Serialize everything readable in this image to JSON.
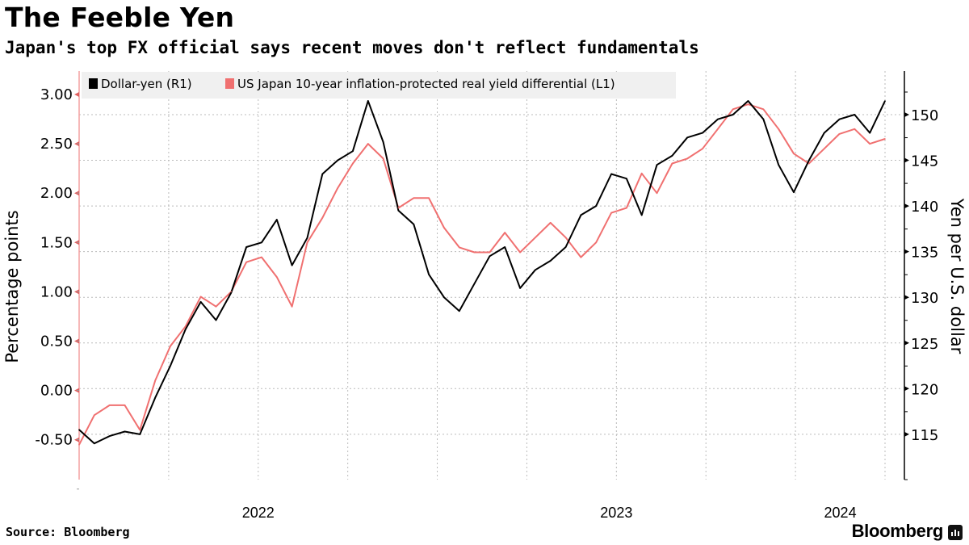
{
  "header": {
    "title": "The Feeble Yen",
    "subtitle": "Japan's top FX official says recent moves don't reflect fundamentals"
  },
  "footer": {
    "source": "Source: Bloomberg",
    "brand": "Bloomberg"
  },
  "colors": {
    "dollar_yen": "#000000",
    "real_yield_diff": "#f07070",
    "grid": "#bbbbbb",
    "left_axis": "#f4a0a0",
    "legend_bg": "#f0f0f0"
  },
  "chart_data": {
    "type": "line",
    "title": "The Feeble Yen",
    "subtitle": "Japan's top FX official says recent moves don't reflect fundamentals",
    "x_range": [
      "2022-01",
      "2024-03"
    ],
    "x_year_labels": [
      "2022",
      "2023",
      "2024"
    ],
    "x": [
      "2022-01a",
      "2022-01b",
      "2022-02a",
      "2022-02b",
      "2022-03a",
      "2022-03b",
      "2022-04a",
      "2022-04b",
      "2022-05a",
      "2022-05b",
      "2022-06a",
      "2022-06b",
      "2022-07a",
      "2022-07b",
      "2022-08a",
      "2022-08b",
      "2022-09a",
      "2022-09b",
      "2022-10a",
      "2022-10b",
      "2022-11a",
      "2022-11b",
      "2022-12a",
      "2022-12b",
      "2023-01a",
      "2023-01b",
      "2023-02a",
      "2023-02b",
      "2023-03a",
      "2023-03b",
      "2023-04a",
      "2023-04b",
      "2023-05a",
      "2023-05b",
      "2023-06a",
      "2023-06b",
      "2023-07a",
      "2023-07b",
      "2023-08a",
      "2023-08b",
      "2023-09a",
      "2023-09b",
      "2023-10a",
      "2023-10b",
      "2023-11a",
      "2023-11b",
      "2023-12a",
      "2023-12b",
      "2024-01a",
      "2024-01b",
      "2024-02a",
      "2024-02b",
      "2024-03a",
      "2024-03b"
    ],
    "series": [
      {
        "name": "Dollar-yen (R1)",
        "axis": "right",
        "values": [
          115.5,
          114.0,
          114.8,
          115.3,
          115.0,
          119.0,
          122.5,
          126.5,
          129.5,
          127.5,
          130.5,
          135.5,
          136.0,
          138.5,
          133.5,
          136.5,
          143.5,
          145.0,
          146.0,
          151.5,
          147.0,
          139.5,
          138.0,
          132.5,
          130.0,
          128.5,
          131.5,
          134.5,
          135.5,
          131.0,
          133.0,
          134.0,
          135.5,
          139.0,
          140.0,
          143.5,
          143.0,
          139.0,
          144.5,
          145.5,
          147.5,
          148.0,
          149.5,
          150.0,
          151.5,
          149.5,
          144.5,
          141.5,
          145.0,
          148.0,
          149.5,
          150.0,
          148.0,
          151.5
        ]
      },
      {
        "name": "US Japan 10-year inflation-protected real yield differential (L1)",
        "axis": "left",
        "values": [
          -0.55,
          -0.25,
          -0.15,
          -0.15,
          -0.4,
          0.1,
          0.45,
          0.65,
          0.95,
          0.85,
          1.0,
          1.3,
          1.35,
          1.15,
          0.85,
          1.5,
          1.75,
          2.05,
          2.3,
          2.5,
          2.35,
          1.85,
          1.95,
          1.95,
          1.65,
          1.45,
          1.4,
          1.4,
          1.6,
          1.4,
          1.55,
          1.7,
          1.55,
          1.35,
          1.5,
          1.8,
          1.85,
          2.2,
          2.0,
          2.3,
          2.35,
          2.45,
          2.65,
          2.85,
          2.9,
          2.85,
          2.65,
          2.4,
          2.3,
          2.45,
          2.6,
          2.65,
          2.5,
          2.55
        ]
      }
    ],
    "left_axis": {
      "label": "Percentage points",
      "ylim": [
        -0.85,
        3.2
      ],
      "ticks": [
        -0.5,
        0.0,
        0.5,
        1.0,
        1.5,
        2.0,
        2.5,
        3.0
      ],
      "tick_labels": [
        "-0.50",
        "0.00",
        "0.50",
        "1.00",
        "1.50",
        "2.00",
        "2.50",
        "3.00"
      ]
    },
    "right_axis": {
      "label": "Yen per U.S. dollar",
      "ylim": [
        110,
        154.5
      ],
      "ticks": [
        115,
        120,
        125,
        130,
        135,
        140,
        145,
        150
      ],
      "tick_labels": [
        "115",
        "120",
        "125",
        "130",
        "135",
        "140",
        "145",
        "150"
      ]
    },
    "legend": {
      "placement": "top-left",
      "entries": [
        "Dollar-yen (R1)",
        "US Japan 10-year inflation-protected real yield differential (L1)"
      ]
    },
    "grid": true
  }
}
